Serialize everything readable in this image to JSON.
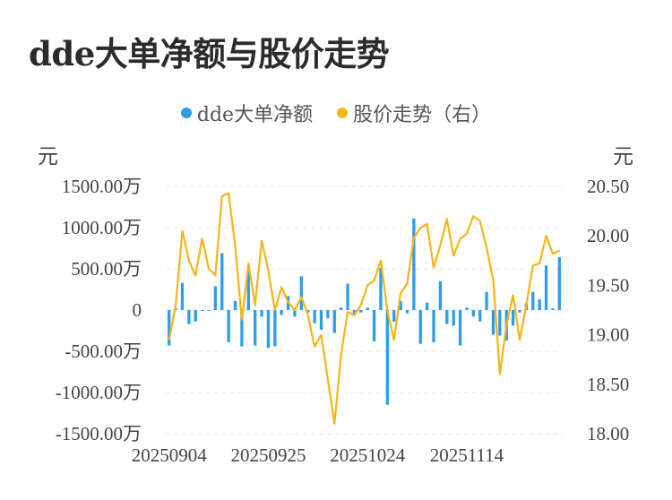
{
  "title": "dde大单净额与股价走势",
  "legend": [
    {
      "label": "dde大单净额",
      "color": "#2f9ee8"
    },
    {
      "label": "股价走势（右）",
      "color": "#f5b41a"
    }
  ],
  "units": {
    "left": "元",
    "right": "元"
  },
  "chart_data": {
    "type": "bar+line",
    "title": "dde大单净额与股价走势",
    "left_axis": {
      "ticks": [
        -1500,
        -1000,
        -500,
        0,
        500,
        1000,
        1500
      ],
      "tick_labels": [
        "-1500.00万",
        "-1000.00万",
        "-500.00万",
        "0",
        "500.00万",
        "1000.00万",
        "1500.00万"
      ],
      "range": [
        -1500,
        1500
      ],
      "unit": "元"
    },
    "right_axis": {
      "ticks": [
        18.0,
        18.5,
        19.0,
        19.5,
        20.0,
        20.5
      ],
      "tick_labels": [
        "18.00",
        "18.50",
        "19.00",
        "19.50",
        "20.00",
        "20.50"
      ],
      "range": [
        18.0,
        20.5
      ],
      "unit": "元"
    },
    "x_tick_labels": [
      {
        "index": 0,
        "label": "20250904"
      },
      {
        "index": 15,
        "label": "20250925"
      },
      {
        "index": 30,
        "label": "20251024"
      },
      {
        "index": 45,
        "label": "20251114"
      }
    ],
    "grid": true,
    "legend_position": "top-center",
    "series": [
      {
        "name": "dde大单净额",
        "type": "bar",
        "color": "#2f9ee8",
        "values": [
          -430,
          20,
          330,
          -170,
          -140,
          -10,
          -10,
          290,
          690,
          -390,
          110,
          -440,
          470,
          -430,
          -80,
          -460,
          -440,
          -60,
          170,
          -80,
          410,
          -30,
          -160,
          -240,
          -100,
          -280,
          30,
          320,
          -70,
          -30,
          30,
          -380,
          510,
          -1150,
          -140,
          110,
          -40,
          1110,
          -410,
          90,
          -390,
          350,
          -170,
          -190,
          -430,
          30,
          -80,
          -140,
          220,
          -300,
          -310,
          -370,
          -190,
          -30,
          80,
          220,
          130,
          540,
          20,
          640
        ]
      },
      {
        "name": "股价走势（右）",
        "type": "line",
        "color": "#f5b41a",
        "values": [
          18.95,
          19.3,
          20.05,
          19.75,
          19.6,
          19.97,
          19.67,
          19.6,
          20.4,
          20.43,
          19.9,
          19.15,
          19.72,
          19.3,
          19.95,
          19.65,
          19.25,
          19.48,
          19.33,
          19.25,
          19.38,
          19.2,
          18.88,
          19.0,
          18.55,
          18.1,
          18.8,
          19.23,
          19.2,
          19.3,
          19.5,
          19.55,
          19.75,
          19.25,
          18.95,
          19.42,
          19.52,
          19.98,
          20.08,
          20.12,
          19.68,
          19.9,
          20.17,
          19.8,
          19.97,
          20.02,
          20.2,
          20.15,
          19.88,
          19.55,
          18.6,
          19.1,
          19.4,
          18.95,
          19.3,
          19.7,
          19.72,
          20.0,
          19.82,
          19.85
        ]
      }
    ]
  }
}
